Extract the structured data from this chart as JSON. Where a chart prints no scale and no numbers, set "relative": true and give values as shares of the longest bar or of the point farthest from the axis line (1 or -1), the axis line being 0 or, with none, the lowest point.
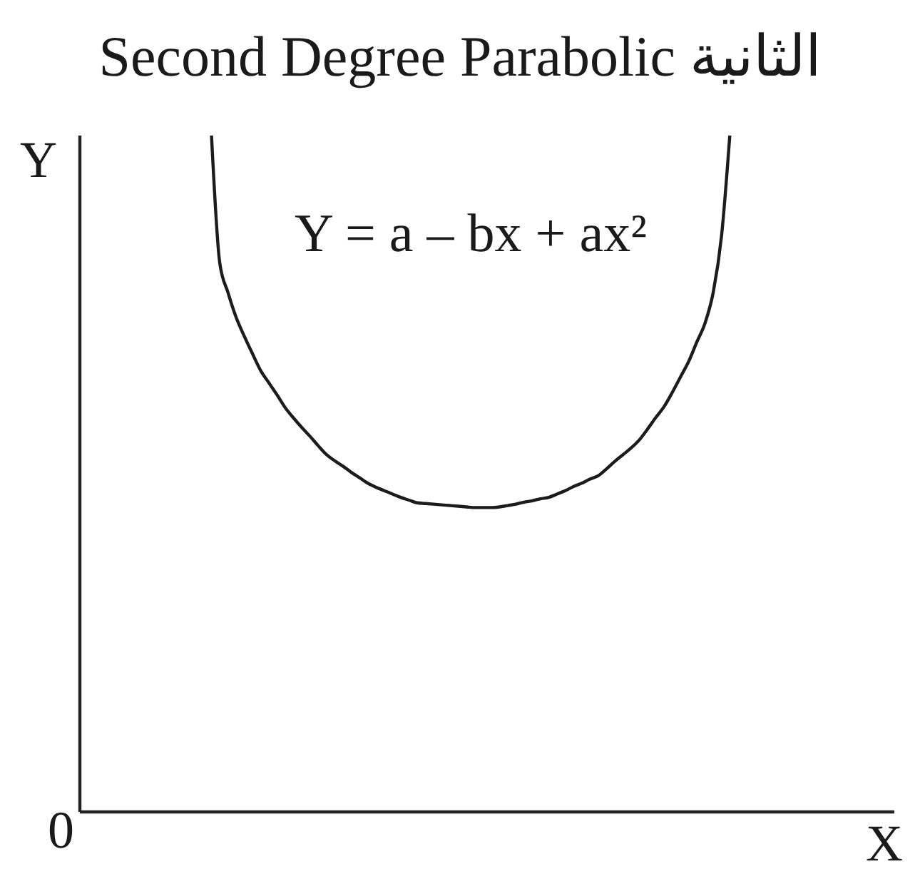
{
  "chart_data": {
    "type": "line",
    "title": "Second Degree Parabolic الثانية",
    "xlabel": "X",
    "ylabel": "Y",
    "annotations": [
      "Y = a – bx + ax²",
      "0"
    ],
    "relative": true,
    "color": "#1c1c1c",
    "categories": [
      null,
      null,
      null,
      null,
      null,
      null,
      null,
      null,
      null,
      null,
      null,
      null,
      null,
      null,
      null,
      null,
      null,
      null,
      null,
      null,
      null,
      null,
      null,
      null,
      null,
      null,
      null,
      null,
      null,
      null,
      null,
      null,
      null,
      null,
      null,
      null,
      null,
      null,
      null,
      null,
      null,
      null,
      null,
      null,
      null,
      null,
      null,
      null,
      null,
      null,
      null,
      null,
      null,
      null,
      null,
      null,
      null,
      null,
      null,
      null,
      null,
      null,
      null,
      null,
      null,
      null,
      null,
      null,
      null,
      null,
      null,
      null,
      null,
      null,
      null,
      null,
      null,
      null,
      null,
      null,
      null,
      null,
      null,
      null,
      null,
      null,
      null,
      null,
      null,
      null,
      null,
      null,
      null,
      null,
      null,
      null,
      null,
      null,
      null,
      null
    ],
    "values": [
      null,
      null,
      null,
      null,
      null,
      null,
      null,
      null,
      null,
      null,
      null,
      null,
      null,
      null,
      null,
      null,
      1,
      0.812,
      0.768,
      0.731,
      0.703,
      0.677,
      0.652,
      0.634,
      0.616,
      0.597,
      0.582,
      0.568,
      0.555,
      0.541,
      0.528,
      0.519,
      0.511,
      0.502,
      0.494,
      0.486,
      0.48,
      0.475,
      0.47,
      0.465,
      0.461,
      0.457,
      0.456,
      0.455,
      0.454,
      0.453,
      0.452,
      0.451,
      0.45,
      0.45,
      0.45,
      0.451,
      0.453,
      0.455,
      0.458,
      0.46,
      0.463,
      0.465,
      0.47,
      0.475,
      0.481,
      0.486,
      0.492,
      0.497,
      0.507,
      0.518,
      0.528,
      0.538,
      0.55,
      0.566,
      0.583,
      0.599,
      0.62,
      0.643,
      0.666,
      0.695,
      0.723,
      0.769,
      0.852,
      1,
      null,
      null,
      null,
      null,
      null,
      null,
      null,
      null,
      null,
      null,
      null,
      null,
      null,
      null,
      null,
      null,
      null,
      null,
      null,
      null
    ]
  }
}
